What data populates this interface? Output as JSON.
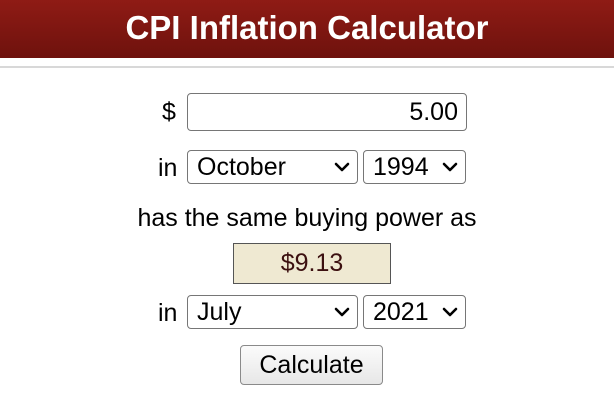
{
  "header": {
    "title": "CPI Inflation Calculator"
  },
  "form": {
    "currency_symbol": "$",
    "amount_value": "5.00",
    "in_label_1": "in",
    "from_month": "October",
    "from_year": "1994",
    "same_power_text": "has the same buying power as",
    "result_value": "$9.13",
    "in_label_2": "in",
    "to_month": "July",
    "to_year": "2021",
    "calculate_label": "Calculate"
  },
  "colors": {
    "header_bg": "#7f1710",
    "result_bg": "#efe9d2"
  },
  "icons": {
    "select_arrow": "chevron-down-icon"
  }
}
